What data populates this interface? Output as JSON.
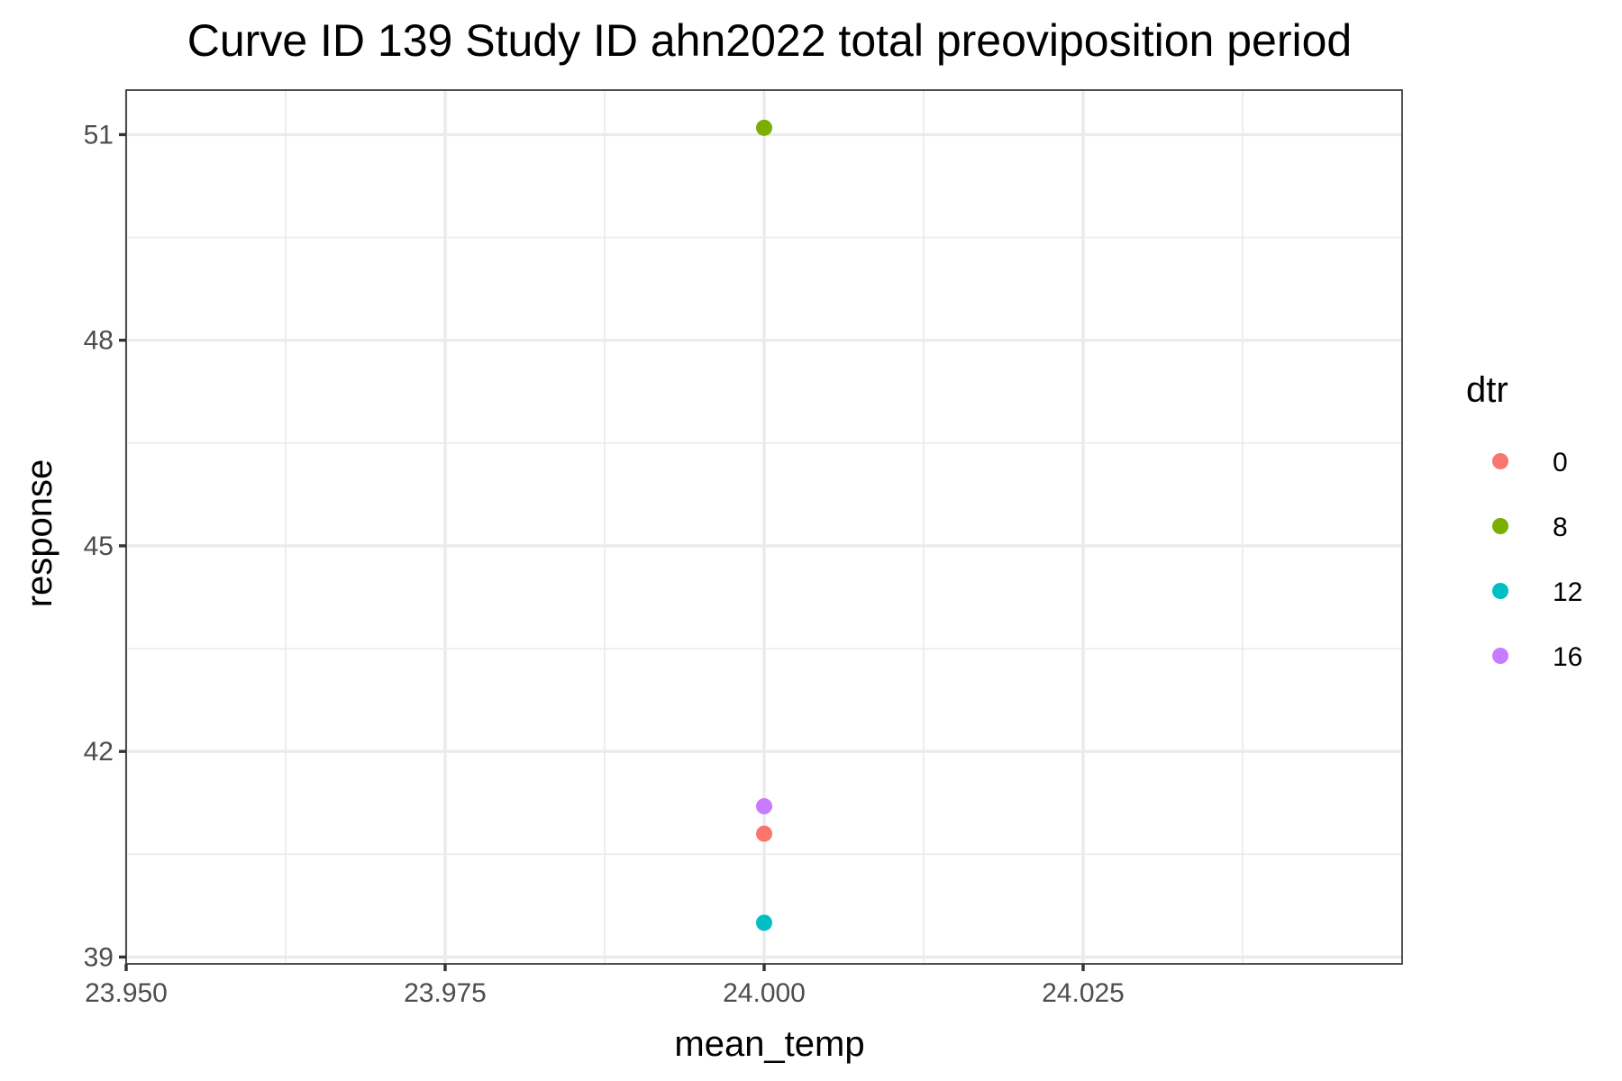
{
  "chart_data": {
    "type": "scatter",
    "title": "Curve ID 139 Study ID ahn2022 total preoviposition period",
    "xlabel": "mean_temp",
    "ylabel": "response",
    "xlim": [
      23.95,
      24.05
    ],
    "ylim": [
      38.9,
      51.65
    ],
    "x_ticks": [
      23.95,
      23.975,
      24.0,
      24.025
    ],
    "x_tick_labels": [
      "23.950",
      "23.975",
      "24.000",
      "24.025"
    ],
    "x_minor_ticks": [
      23.9625,
      23.9875,
      24.0125,
      24.0375
    ],
    "y_ticks": [
      39,
      42,
      45,
      48,
      51
    ],
    "y_tick_labels": [
      "39",
      "42",
      "45",
      "48",
      "51"
    ],
    "y_minor_ticks": [
      40.5,
      43.5,
      46.5,
      49.5
    ],
    "grid": true,
    "legend": {
      "title": "dtr",
      "position": "right"
    },
    "series": [
      {
        "name": "0",
        "color": "#F8766D",
        "points": [
          {
            "x": 24.0,
            "y": 40.8
          }
        ]
      },
      {
        "name": "8",
        "color": "#7CAE00",
        "points": [
          {
            "x": 24.0,
            "y": 51.1
          }
        ]
      },
      {
        "name": "12",
        "color": "#00BFC4",
        "points": [
          {
            "x": 24.0,
            "y": 39.5
          }
        ]
      },
      {
        "name": "16",
        "color": "#C77CFF",
        "points": [
          {
            "x": 24.0,
            "y": 41.2
          }
        ]
      }
    ]
  }
}
